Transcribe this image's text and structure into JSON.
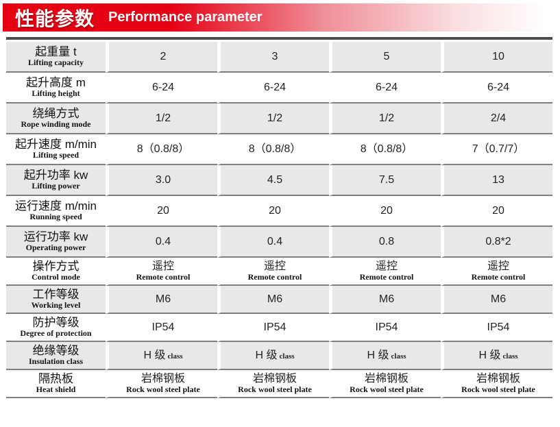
{
  "header": {
    "title_zh": "性能参数",
    "title_en": "Performance parameter"
  },
  "colors": {
    "banner_red": "#e60014",
    "row_shade": "#e8e8e8",
    "separator": "#7f7f7f",
    "top_bar": "#4c4c4e"
  },
  "table": {
    "rows": [
      {
        "shade": true,
        "label_zh": "起重量 t",
        "label_en": "Lifting capacity",
        "values": [
          {
            "text": "2"
          },
          {
            "text": "3"
          },
          {
            "text": "5"
          },
          {
            "text": "10"
          }
        ]
      },
      {
        "shade": false,
        "label_zh": "起升高度 m",
        "label_en": "Lifting height",
        "values": [
          {
            "text": "6-24"
          },
          {
            "text": "6-24"
          },
          {
            "text": "6-24"
          },
          {
            "text": "6-24"
          }
        ]
      },
      {
        "shade": true,
        "label_zh": "绕绳方式",
        "label_en": "Rope winding mode",
        "values": [
          {
            "text": "1/2"
          },
          {
            "text": "1/2"
          },
          {
            "text": "1/2"
          },
          {
            "text": "2/4"
          }
        ]
      },
      {
        "shade": false,
        "label_zh": "起升速度 m/min",
        "label_en": "Lifting speed",
        "values": [
          {
            "text": "8（0.8/8）"
          },
          {
            "text": "8（0.8/8）"
          },
          {
            "text": "8（0.8/8）"
          },
          {
            "text": "7（0.7/7）"
          }
        ]
      },
      {
        "shade": true,
        "label_zh": "起升功率 kw",
        "label_en": "Lifting power",
        "values": [
          {
            "text": "3.0"
          },
          {
            "text": "4.5"
          },
          {
            "text": "7.5"
          },
          {
            "text": "13"
          }
        ]
      },
      {
        "shade": false,
        "label_zh": "运行速度 m/min",
        "label_en": "Running speed",
        "values": [
          {
            "text": "20"
          },
          {
            "text": "20"
          },
          {
            "text": "20"
          },
          {
            "text": "20"
          }
        ]
      },
      {
        "shade": true,
        "label_zh": "运行功率 kw",
        "label_en": "Operating power",
        "values": [
          {
            "text": "0.4"
          },
          {
            "text": "0.4"
          },
          {
            "text": "0.8"
          },
          {
            "text": "0.8*2"
          }
        ]
      },
      {
        "shade": false,
        "label_zh": "操作方式",
        "label_en": "Control mode",
        "values": [
          {
            "text": "遥控",
            "sub": "Remote control"
          },
          {
            "text": "遥控",
            "sub": "Remote control"
          },
          {
            "text": "遥控",
            "sub": "Remote control"
          },
          {
            "text": "遥控",
            "sub": "Remote control"
          }
        ]
      },
      {
        "shade": true,
        "label_zh": "工作等级",
        "label_en": "Working level",
        "values": [
          {
            "text": "M6"
          },
          {
            "text": "M6"
          },
          {
            "text": "M6"
          },
          {
            "text": "M6"
          }
        ]
      },
      {
        "shade": false,
        "label_zh": "防护等级",
        "label_en": "Degree of protection",
        "values": [
          {
            "text": "IP54"
          },
          {
            "text": "IP54"
          },
          {
            "text": "IP54"
          },
          {
            "text": "IP54"
          }
        ]
      },
      {
        "shade": true,
        "label_zh": "绝缘等级",
        "label_en": "Insulation class",
        "values": [
          {
            "text": "H 级",
            "small": "class"
          },
          {
            "text": "H 级",
            "small": "class"
          },
          {
            "text": "H 级",
            "small": "class"
          },
          {
            "text": "H 级",
            "small": "class"
          }
        ]
      },
      {
        "shade": false,
        "label_zh": "隔热板",
        "label_en": "Heat shield",
        "values": [
          {
            "text": "岩棉钢板",
            "sub": "Rock wool steel plate"
          },
          {
            "text": "岩棉钢板",
            "sub": "Rock wool steel plate"
          },
          {
            "text": "岩棉钢板",
            "sub": "Rock wool steel plate"
          },
          {
            "text": "岩棉钢板",
            "sub": "Rock wool steel plate"
          }
        ]
      }
    ]
  }
}
